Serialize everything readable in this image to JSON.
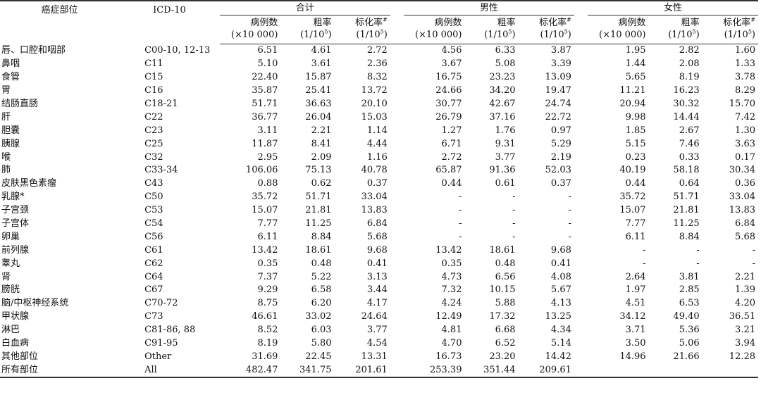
{
  "header": {
    "site": "癌症部位",
    "icd": "ICD-10",
    "groups": [
      "合计",
      "男性",
      "女性"
    ],
    "cols": [
      [
        "病例数",
        "(×10 000)"
      ],
      [
        "粗率",
        "(1/10",
        "5",
        ")"
      ],
      [
        "标化率",
        "#",
        "(1/10",
        "5",
        ")"
      ]
    ]
  },
  "rows": [
    [
      "唇、口腔和咽部",
      "C00-10, 12-13",
      "6.51",
      "4.61",
      "2.72",
      "4.56",
      "6.33",
      "3.87",
      "1.95",
      "2.82",
      "1.60"
    ],
    [
      "鼻咽",
      "C11",
      "5.10",
      "3.61",
      "2.36",
      "3.67",
      "5.08",
      "3.39",
      "1.44",
      "2.08",
      "1.33"
    ],
    [
      "食管",
      "C15",
      "22.40",
      "15.87",
      "8.32",
      "16.75",
      "23.23",
      "13.09",
      "5.65",
      "8.19",
      "3.78"
    ],
    [
      "胃",
      "C16",
      "35.87",
      "25.41",
      "13.72",
      "24.66",
      "34.20",
      "19.47",
      "11.21",
      "16.23",
      "8.29"
    ],
    [
      "结肠直肠",
      "C18-21",
      "51.71",
      "36.63",
      "20.10",
      "30.77",
      "42.67",
      "24.74",
      "20.94",
      "30.32",
      "15.70"
    ],
    [
      "肝",
      "C22",
      "36.77",
      "26.04",
      "15.03",
      "26.79",
      "37.16",
      "22.72",
      "9.98",
      "14.44",
      "7.42"
    ],
    [
      "胆囊",
      "C23",
      "3.11",
      "2.21",
      "1.14",
      "1.27",
      "1.76",
      "0.97",
      "1.85",
      "2.67",
      "1.30"
    ],
    [
      "胰腺",
      "C25",
      "11.87",
      "8.41",
      "4.44",
      "6.71",
      "9.31",
      "5.29",
      "5.15",
      "7.46",
      "3.63"
    ],
    [
      "喉",
      "C32",
      "2.95",
      "2.09",
      "1.16",
      "2.72",
      "3.77",
      "2.19",
      "0.23",
      "0.33",
      "0.17"
    ],
    [
      "肺",
      "C33-34",
      "106.06",
      "75.13",
      "40.78",
      "65.87",
      "91.36",
      "52.03",
      "40.19",
      "58.18",
      "30.34"
    ],
    [
      "皮肤黑色素瘤",
      "C43",
      "0.88",
      "0.62",
      "0.37",
      "0.44",
      "0.61",
      "0.37",
      "0.44",
      "0.64",
      "0.36"
    ],
    [
      "乳腺*",
      "C50",
      "35.72",
      "51.71",
      "33.04",
      "-",
      "-",
      "-",
      "35.72",
      "51.71",
      "33.04"
    ],
    [
      "子宫颈",
      "C53",
      "15.07",
      "21.81",
      "13.83",
      "-",
      "-",
      "-",
      "15.07",
      "21.81",
      "13.83"
    ],
    [
      "子宫体",
      "C54",
      "7.77",
      "11.25",
      "6.84",
      "-",
      "-",
      "-",
      "7.77",
      "11.25",
      "6.84"
    ],
    [
      "卵巢",
      "C56",
      "6.11",
      "8.84",
      "5.68",
      "-",
      "-",
      "-",
      "6.11",
      "8.84",
      "5.68"
    ],
    [
      "前列腺",
      "C61",
      "13.42",
      "18.61",
      "9.68",
      "13.42",
      "18.61",
      "9.68",
      "-",
      "-",
      "-"
    ],
    [
      "睾丸",
      "C62",
      "0.35",
      "0.48",
      "0.41",
      "0.35",
      "0.48",
      "0.41",
      "-",
      "-",
      "-"
    ],
    [
      "肾",
      "C64",
      "7.37",
      "5.22",
      "3.13",
      "4.73",
      "6.56",
      "4.08",
      "2.64",
      "3.81",
      "2.21"
    ],
    [
      "膀胱",
      "C67",
      "9.29",
      "6.58",
      "3.44",
      "7.32",
      "10.15",
      "5.67",
      "1.97",
      "2.85",
      "1.39"
    ],
    [
      "脑/中枢神经系统",
      "C70-72",
      "8.75",
      "6.20",
      "4.17",
      "4.24",
      "5.88",
      "4.13",
      "4.51",
      "6.53",
      "4.20"
    ],
    [
      "甲状腺",
      "C73",
      "46.61",
      "33.02",
      "24.64",
      "12.49",
      "17.32",
      "13.25",
      "34.12",
      "49.40",
      "36.51"
    ],
    [
      "淋巴",
      "C81-86, 88",
      "8.52",
      "6.03",
      "3.77",
      "4.81",
      "6.68",
      "4.34",
      "3.71",
      "5.36",
      "3.21"
    ],
    [
      "白血病",
      "C91-95",
      "8.19",
      "5.80",
      "4.54",
      "4.70",
      "6.52",
      "5.14",
      "3.50",
      "5.06",
      "3.94"
    ],
    [
      "其他部位",
      "Other",
      "31.69",
      "22.45",
      "13.31",
      "16.73",
      "23.20",
      "14.42",
      "14.96",
      "21.66",
      "12.28"
    ],
    [
      "所有部位",
      "All",
      "482.47",
      "341.75",
      "201.61",
      "253.39",
      "351.44",
      "209.61",
      "",
      "",
      ""
    ]
  ]
}
